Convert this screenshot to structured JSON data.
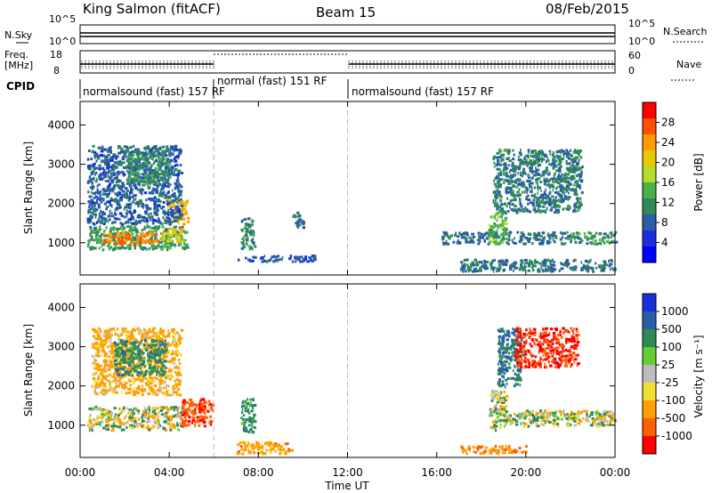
{
  "header": {
    "station": "King Salmon (fitACF)",
    "beam": "Beam 15",
    "date": "08/Feb/2015"
  },
  "aux_panel": {
    "nsky_label": "N.Sky",
    "nsearch_label": "N.Search",
    "nsky_ticks": [
      "10^5",
      "10^0"
    ],
    "nsearch_ticks": [
      "10^5",
      "10^0"
    ],
    "freq_label": "Freq.",
    "freq_unit": "[MHz]",
    "freq_ticks": [
      "18",
      "8"
    ],
    "nave_label": "Nave",
    "nave_ticks": [
      "60",
      "0"
    ],
    "cpid_label": "CPID",
    "cpid_segments": [
      {
        "text": "normalsound (fast) 157 RF",
        "start_h": 0,
        "end_h": 6
      },
      {
        "text": "normal (fast) 151 RF",
        "start_h": 6,
        "end_h": 12
      },
      {
        "text": "normalsound (fast) 157 RF",
        "start_h": 12,
        "end_h": 24
      }
    ]
  },
  "power_colorbar": {
    "label": "Power [dB]",
    "ticks": [
      "28",
      "24",
      "20",
      "16",
      "12",
      "8",
      "4"
    ],
    "colors": [
      "#ff0000",
      "#ff5000",
      "#ff9a00",
      "#e8c800",
      "#b4dc28",
      "#4ab04a",
      "#2e8b57",
      "#2a5ca8",
      "#1a2edc",
      "#0000ff"
    ]
  },
  "velocity_colorbar": {
    "label": "Velocity [m s⁻¹]",
    "ticks": [
      "1000",
      "500",
      "100",
      "25",
      "-25",
      "-100",
      "-500",
      "-1000"
    ],
    "colors": [
      "#1a2edc",
      "#2a5ca8",
      "#2e8b57",
      "#66cc33",
      "#bdbdbd",
      "#f0e030",
      "#ffa000",
      "#ff6000",
      "#ff0000"
    ]
  },
  "x_axis": {
    "label": "Time UT",
    "ticks": [
      "00:00",
      "04:00",
      "08:00",
      "12:00",
      "16:00",
      "20:00",
      "00:00"
    ]
  },
  "chart_data": [
    {
      "type": "heatmap",
      "title": "Power",
      "ylabel": "Slant Range [km]",
      "xlabel": "Time UT",
      "xlim": [
        0,
        24
      ],
      "ylim": [
        180,
        4600
      ],
      "yticks": [
        1000,
        2000,
        3000,
        4000
      ],
      "gaps_h": [
        6,
        12
      ],
      "regions": [
        {
          "x": [
            0.3,
            4.8
          ],
          "y": [
            850,
            1450
          ],
          "level": 11
        },
        {
          "x": [
            1.0,
            3.5
          ],
          "y": [
            1000,
            1300
          ],
          "level": 25
        },
        {
          "x": [
            3.6,
            4.6
          ],
          "y": [
            1050,
            1400
          ],
          "level": 20
        },
        {
          "x": [
            3.9,
            4.8
          ],
          "y": [
            1500,
            2100
          ],
          "level": 22
        },
        {
          "x": [
            0.3,
            4.5
          ],
          "y": [
            1500,
            3500
          ],
          "level": 7
        },
        {
          "x": [
            2.0,
            4.0
          ],
          "y": [
            2500,
            3400
          ],
          "level": 10
        },
        {
          "x": [
            7.2,
            7.8
          ],
          "y": [
            850,
            1650
          ],
          "level": 10
        },
        {
          "x": [
            9.5,
            10.0
          ],
          "y": [
            1400,
            1800
          ],
          "level": 8
        },
        {
          "x": [
            7.0,
            10.5
          ],
          "y": [
            550,
            700
          ],
          "level": 6
        },
        {
          "x": [
            16.2,
            21.3
          ],
          "y": [
            1000,
            1300
          ],
          "level": 8
        },
        {
          "x": [
            18.3,
            19.1
          ],
          "y": [
            1000,
            1800
          ],
          "level": 14
        },
        {
          "x": [
            18.5,
            22.5
          ],
          "y": [
            1800,
            3400
          ],
          "level": 9
        },
        {
          "x": [
            21.5,
            24.0
          ],
          "y": [
            1000,
            1300
          ],
          "level": 10
        },
        {
          "x": [
            17.0,
            24.0
          ],
          "y": [
            300,
            600
          ],
          "level": 8
        }
      ]
    },
    {
      "type": "heatmap",
      "title": "Velocity",
      "ylabel": "Slant Range [km]",
      "xlabel": "Time UT",
      "xlim": [
        0,
        24
      ],
      "ylim": [
        180,
        4600
      ],
      "yticks": [
        1000,
        2000,
        3000,
        4000
      ],
      "gaps_h": [
        6,
        12
      ],
      "regions": [
        {
          "x": [
            0.3,
            4.6
          ],
          "y": [
            900,
            1500
          ],
          "level": 0
        },
        {
          "x": [
            4.5,
            5.9
          ],
          "y": [
            1000,
            1700
          ],
          "level": -700
        },
        {
          "x": [
            0.5,
            4.5
          ],
          "y": [
            1800,
            3500
          ],
          "level": -150
        },
        {
          "x": [
            1.5,
            3.8
          ],
          "y": [
            2300,
            3200
          ],
          "level": 200
        },
        {
          "x": [
            7.2,
            7.8
          ],
          "y": [
            850,
            1700
          ],
          "level": 200
        },
        {
          "x": [
            7.0,
            9.5
          ],
          "y": [
            300,
            600
          ],
          "level": -200
        },
        {
          "x": [
            18.3,
            19.1
          ],
          "y": [
            900,
            1900
          ],
          "level": 50
        },
        {
          "x": [
            19.0,
            24.0
          ],
          "y": [
            1000,
            1400
          ],
          "level": 0
        },
        {
          "x": [
            18.7,
            19.8
          ],
          "y": [
            2000,
            3500
          ],
          "level": 300
        },
        {
          "x": [
            19.5,
            22.3
          ],
          "y": [
            2500,
            3500
          ],
          "level": -800
        },
        {
          "x": [
            17.0,
            20.0
          ],
          "y": [
            300,
            500
          ],
          "level": -300
        }
      ]
    }
  ]
}
